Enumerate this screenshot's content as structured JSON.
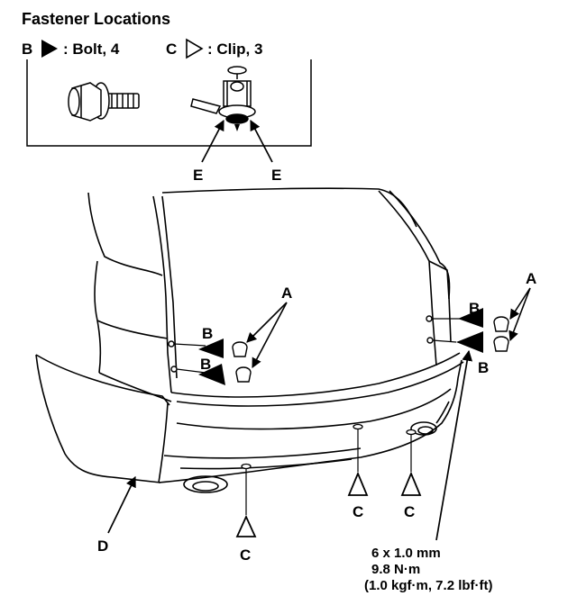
{
  "title": "Fastener Locations",
  "legend": {
    "bolt": {
      "letter": "B",
      "text": ": Bolt, 4"
    },
    "clip": {
      "letter": "C",
      "text": ": Clip, 3"
    }
  },
  "callouts": {
    "a": "A",
    "b": "B",
    "c": "C",
    "d": "D",
    "e": "E"
  },
  "torque_spec": {
    "size": "6 x 1.0 mm",
    "torque_nm": "9.8 N·m",
    "torque_alt": "(1.0 kgf·m, 7.2 lbf·ft)"
  }
}
